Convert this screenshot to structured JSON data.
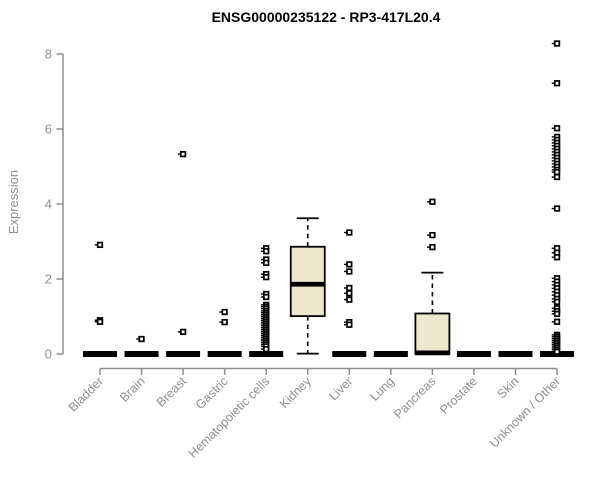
{
  "page": {
    "background": "#ffffff"
  },
  "chart_data": {
    "type": "boxplot",
    "title": "ENSG00000235122 - RP3-417L20.4",
    "xlabel": "",
    "ylabel": "Expression",
    "ylim": [
      0,
      8
    ],
    "yticks": [
      0,
      2,
      4,
      6,
      8
    ],
    "grid": false,
    "legend": "none",
    "colors": {
      "axis": "#8f8f8f",
      "tick_label": "#8f8f8f",
      "title": "#000000",
      "box_fill": "#ece8cd",
      "box_stroke": "#000000",
      "outlier": "#000000"
    },
    "categories": [
      "Bladder",
      "Brain",
      "Breast",
      "Gastric",
      "Hematopoietic cells",
      "Kidney",
      "Liver",
      "Lung",
      "Pancreas",
      "Prostate",
      "Skin",
      "Unknown / Other"
    ],
    "series": [
      {
        "category": "Bladder",
        "q1": 0,
        "median": 0,
        "q3": 0,
        "whisker_low": 0,
        "whisker_high": 0,
        "outliers": [
          2.91,
          0.9,
          0.86
        ]
      },
      {
        "category": "Brain",
        "q1": 0,
        "median": 0,
        "q3": 0,
        "whisker_low": 0,
        "whisker_high": 0,
        "outliers": [
          0.4
        ]
      },
      {
        "category": "Breast",
        "q1": 0,
        "median": 0,
        "q3": 0,
        "whisker_low": 0,
        "whisker_high": 0,
        "outliers": [
          5.33,
          0.59
        ]
      },
      {
        "category": "Gastric",
        "q1": 0,
        "median": 0,
        "q3": 0,
        "whisker_low": 0,
        "whisker_high": 0,
        "outliers": [
          1.12,
          0.85
        ]
      },
      {
        "category": "Hematopoietic cells",
        "q1": 0,
        "median": 0,
        "q3": 0,
        "whisker_low": 0,
        "whisker_high": 0,
        "outliers": [
          2.82,
          2.74,
          2.52,
          2.43,
          2.13,
          2.05,
          1.6,
          1.52,
          1.31,
          1.26,
          1.21,
          1.15,
          1.1,
          1.05,
          1.0,
          0.95,
          0.9,
          0.85,
          0.8,
          0.75,
          0.7,
          0.65,
          0.6,
          0.55,
          0.5,
          0.45,
          0.4,
          0.35,
          0.3,
          0.25,
          0.2,
          0.13
        ]
      },
      {
        "category": "Kidney",
        "q1": 1.01,
        "median": 1.86,
        "q3": 2.86,
        "whisker_low": 0.01,
        "whisker_high": 3.62,
        "outliers": []
      },
      {
        "category": "Liver",
        "q1": 0,
        "median": 0,
        "q3": 0,
        "whisker_low": 0,
        "whisker_high": 0,
        "outliers": [
          3.24,
          2.39,
          2.2,
          1.76,
          1.62,
          1.45,
          0.85,
          0.78
        ]
      },
      {
        "category": "Lung",
        "q1": 0,
        "median": 0,
        "q3": 0,
        "whisker_low": 0,
        "whisker_high": 0,
        "outliers": []
      },
      {
        "category": "Pancreas",
        "q1": 0,
        "median": 0.03,
        "q3": 1.08,
        "whisker_low": 0,
        "whisker_high": 2.17,
        "outliers": [
          4.06,
          3.17,
          2.85
        ]
      },
      {
        "category": "Prostate",
        "q1": 0,
        "median": 0,
        "q3": 0,
        "whisker_low": 0,
        "whisker_high": 0,
        "outliers": []
      },
      {
        "category": "Skin",
        "q1": 0,
        "median": 0,
        "q3": 0,
        "whisker_low": 0,
        "whisker_high": 0,
        "outliers": []
      },
      {
        "category": "Unknown / Other",
        "q1": 0,
        "median": 0,
        "q3": 0,
        "whisker_low": 0,
        "whisker_high": 0,
        "outliers": [
          8.28,
          7.22,
          6.02,
          5.79,
          5.71,
          5.63,
          5.55,
          5.47,
          5.39,
          5.31,
          5.23,
          5.15,
          5.07,
          4.99,
          4.91,
          4.85,
          4.72,
          3.88,
          2.82,
          2.7,
          2.58,
          2.02,
          1.93,
          1.84,
          1.75,
          1.66,
          1.57,
          1.47,
          1.39,
          1.22,
          1.14,
          1.07,
          0.86,
          0.51,
          0.46,
          0.41,
          0.36,
          0.31,
          0.26,
          0.21,
          0.16,
          0.11,
          0.06
        ]
      }
    ]
  }
}
